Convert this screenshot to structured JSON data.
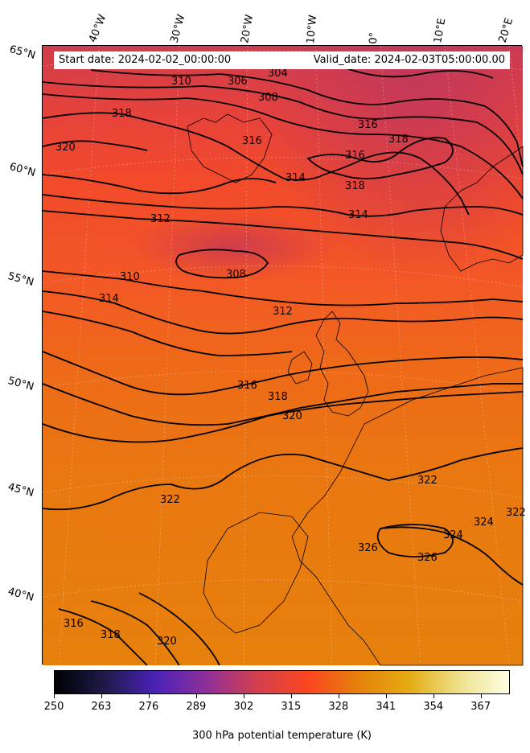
{
  "header": {
    "start_date": "Start date: 2024-02-02_00:00:00",
    "valid_date": "Valid_date: 2024-02-03T05:00:00.00"
  },
  "longitude_labels": [
    "40°W",
    "30°W",
    "20°W",
    "10°W",
    "0°",
    "10°E",
    "20°E"
  ],
  "latitude_labels": [
    "65°N",
    "60°N",
    "55°N",
    "50°N",
    "45°N",
    "40°N"
  ],
  "contour_labels": [
    "304",
    "306",
    "308",
    "310",
    "318",
    "320",
    "316",
    "316",
    "314",
    "318",
    "316",
    "318",
    "314",
    "312",
    "308",
    "310",
    "314",
    "312",
    "316",
    "318",
    "320",
    "322",
    "322",
    "324",
    "324",
    "326",
    "326",
    "316",
    "318",
    "320",
    "322"
  ],
  "colorbar": {
    "label": "300 hPa potential temperature (K)",
    "ticks": [
      "250",
      "263",
      "276",
      "289",
      "302",
      "315",
      "328",
      "341",
      "354",
      "367"
    ],
    "range": [
      250,
      375
    ],
    "colormap": [
      "#000004",
      "#1f1a4a",
      "#4b22b8",
      "#8e2f9a",
      "#d23f4f",
      "#fb4522",
      "#e6800a",
      "#e3ab12",
      "#eee08a",
      "#fcffe4"
    ]
  },
  "field_colors": {
    "cold": "#c83a55",
    "mid": "#f34a2a",
    "warm": "#e87a10",
    "contour": "#000000"
  }
}
